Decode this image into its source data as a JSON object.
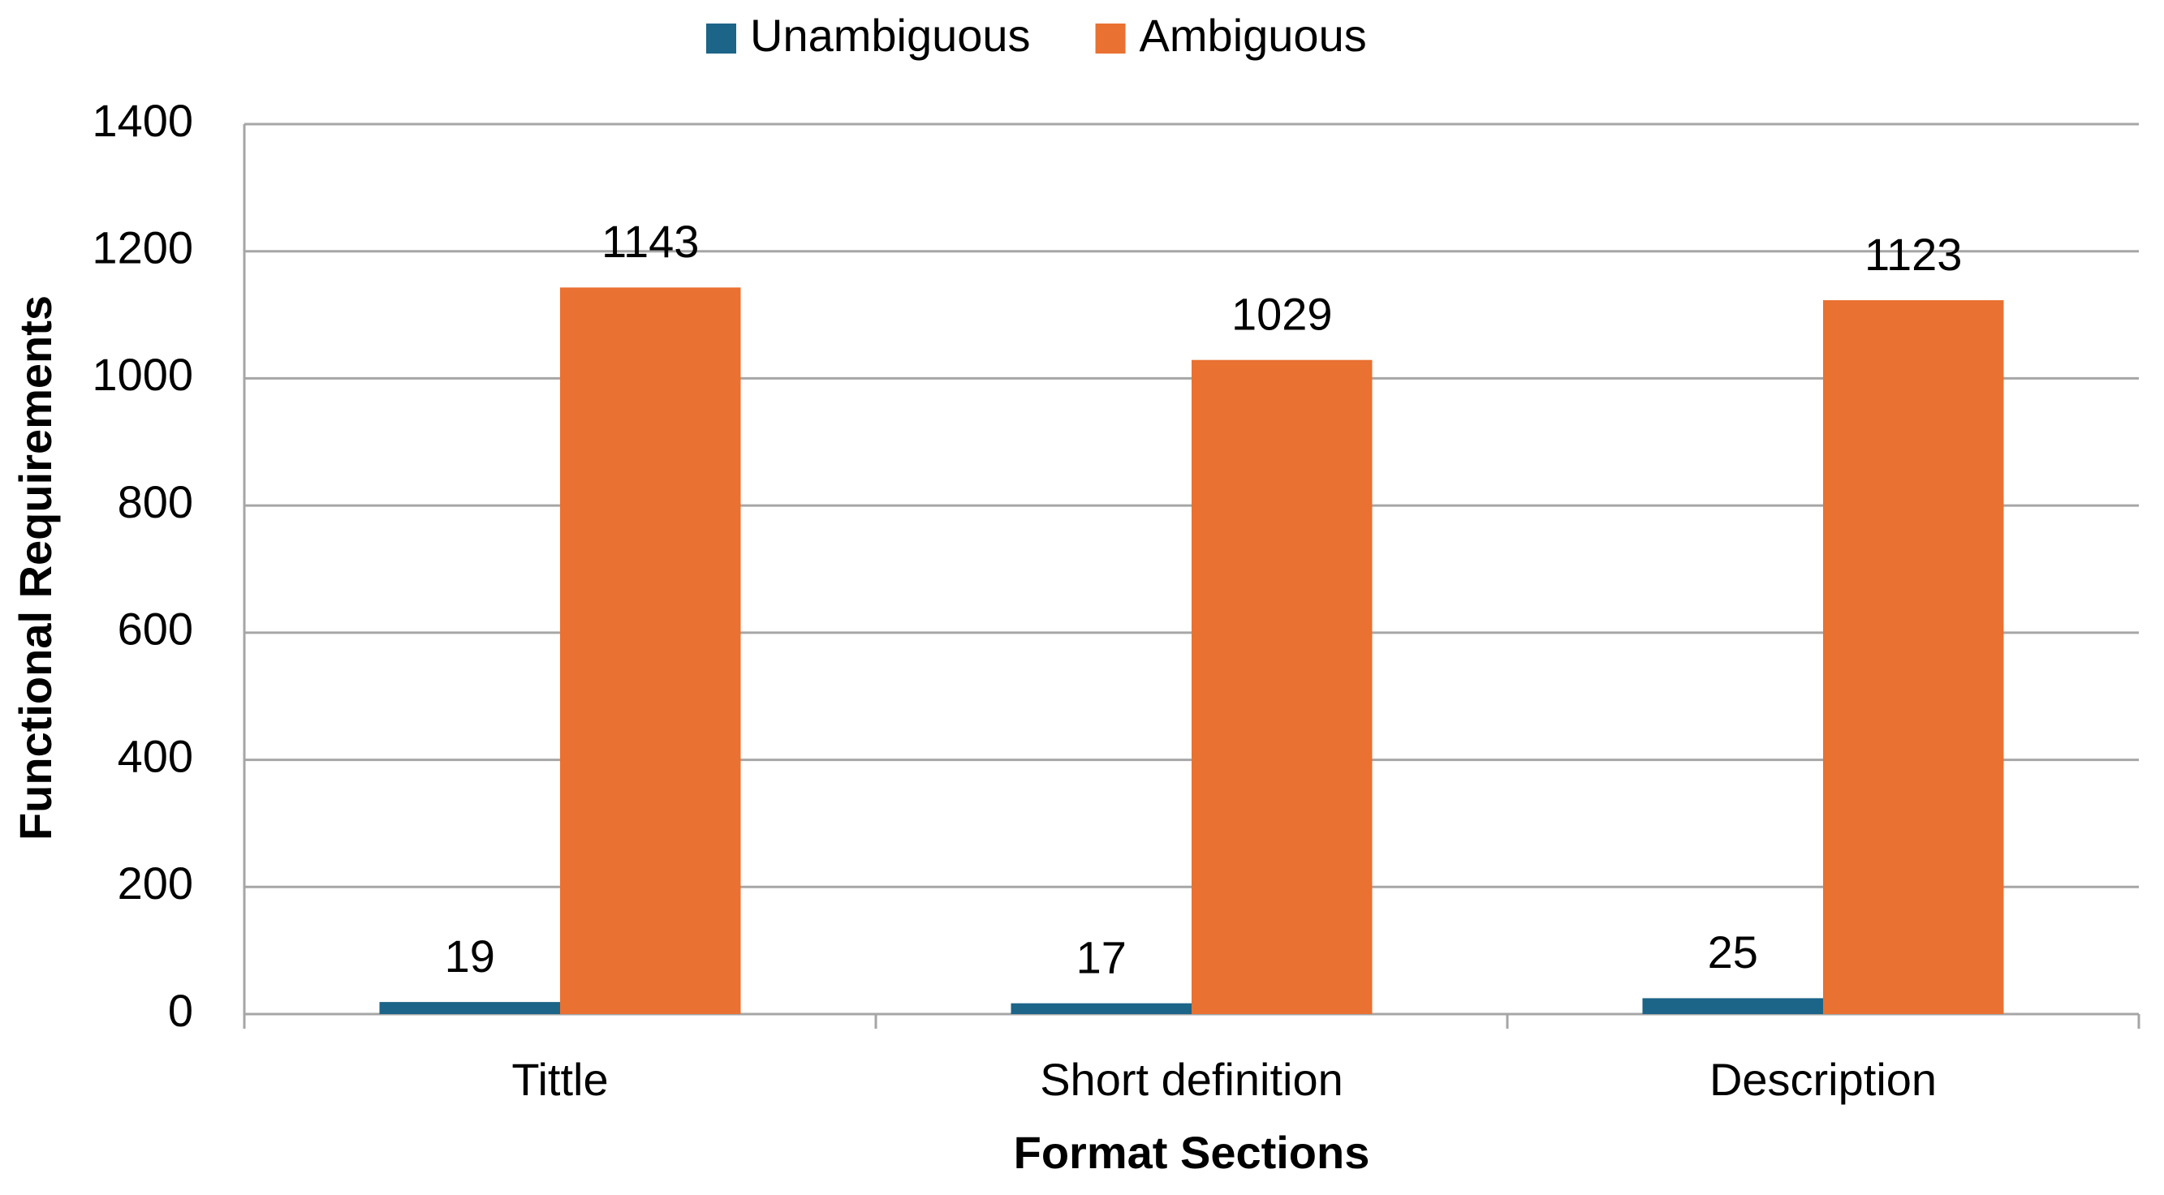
{
  "chart_data": {
    "type": "bar",
    "x_label": "Format Sections",
    "y_label": "Functional Requirements",
    "categories": [
      "Tittle",
      "Short definition",
      "Description"
    ],
    "series": [
      {
        "name": "Unambiguous",
        "color": "#1d6489",
        "values": [
          19,
          17,
          25
        ]
      },
      {
        "name": "Ambiguous",
        "color": "#e97132",
        "values": [
          1143,
          1029,
          1123
        ]
      }
    ],
    "ylim": [
      0,
      1400
    ],
    "yticks": [
      0,
      200,
      400,
      600,
      800,
      1000,
      1200,
      1400
    ],
    "grid": true,
    "legend": "top"
  }
}
